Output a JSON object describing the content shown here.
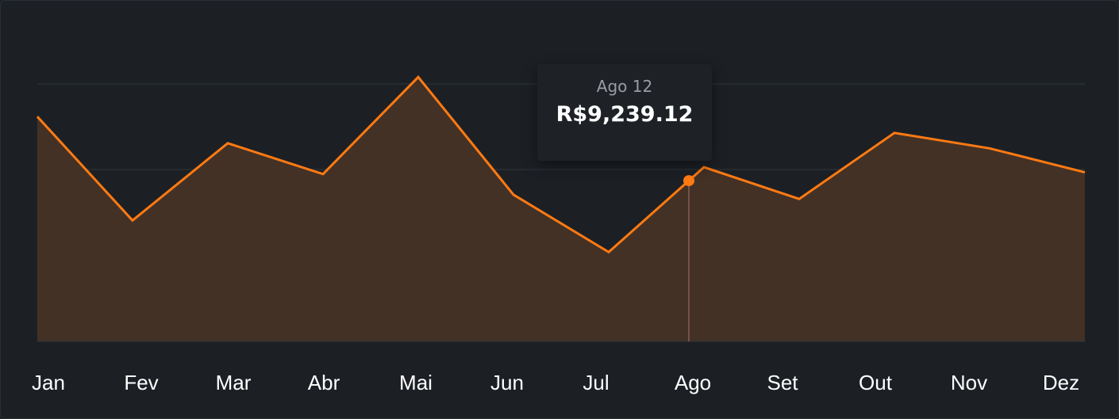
{
  "colors": {
    "background": "#1c2025",
    "line": "#ff7a12",
    "fill": "#433126",
    "grid": "#31363c",
    "crosshair": "#8a5a5a"
  },
  "tooltip": {
    "date": "Ago 12",
    "value": "R$9,239.12"
  },
  "chart_data": {
    "type": "area",
    "categories": [
      "Jan",
      "Fev",
      "Mar",
      "Abr",
      "Mai",
      "Jun",
      "Jul",
      "Ago",
      "Set",
      "Out",
      "Nov",
      "Dez"
    ],
    "series": [
      {
        "values": [
          13100,
          7050,
          11550,
          9750,
          15400,
          8550,
          5200,
          10150,
          8300,
          12150,
          11250,
          9850
        ]
      }
    ],
    "highlight": {
      "category": "Ago",
      "value": 9239.12,
      "label": "Ago 12"
    },
    "ylim": [
      0,
      15000
    ],
    "grid": true,
    "legend": "none"
  }
}
